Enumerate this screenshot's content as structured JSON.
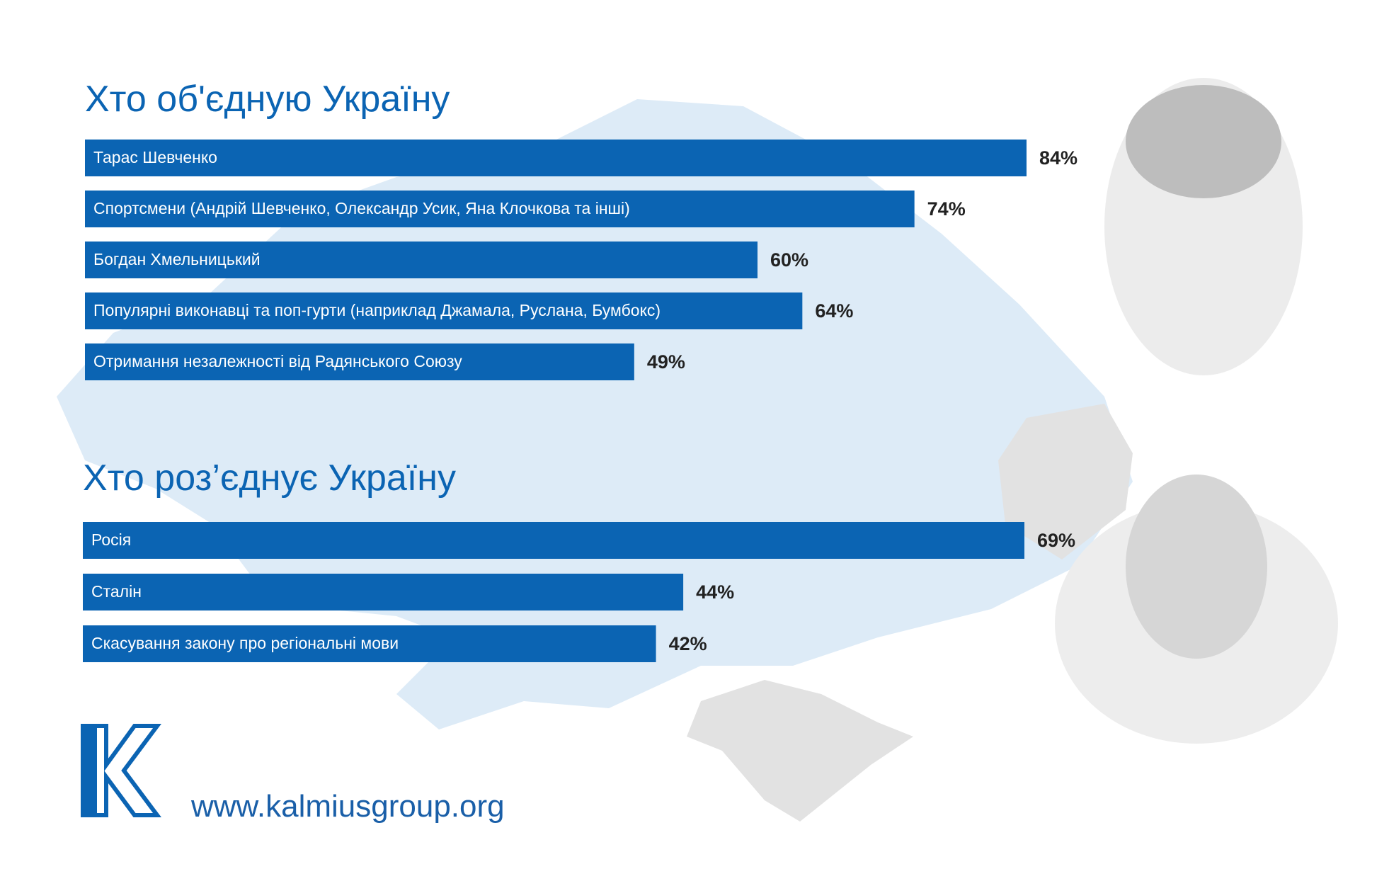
{
  "chart_data": [
    {
      "type": "hbar",
      "title": "Хто об'єдную Україну",
      "categories": [
        "Тарас Шевченко",
        "Спортсмени (Андрій Шевченко, Олександр Усик, Яна Клочкова та інші)",
        "Богдан Хмельницький",
        "Популярні виконавці та поп-гурти (наприклад Джамала, Руслана, Бумбокс)",
        "Отримання незалежності від Радянського Союзу"
      ],
      "values": [
        84,
        74,
        60,
        64,
        49
      ],
      "value_labels": [
        "84%",
        "74%",
        "60%",
        "64%",
        "49%"
      ],
      "color": "#0b64b3",
      "xlim": [
        0,
        84
      ]
    },
    {
      "type": "hbar",
      "title": "Хто роз’єднує Україну",
      "categories": [
        "Росія",
        "Сталін",
        "Скасування закону про регіональні мови"
      ],
      "values": [
        69,
        44,
        42
      ],
      "value_labels": [
        "69%",
        "44%",
        "42%"
      ],
      "color": "#0b64b3",
      "xlim": [
        0,
        69
      ]
    }
  ],
  "footer": {
    "url": "www.kalmiusgroup.org"
  }
}
